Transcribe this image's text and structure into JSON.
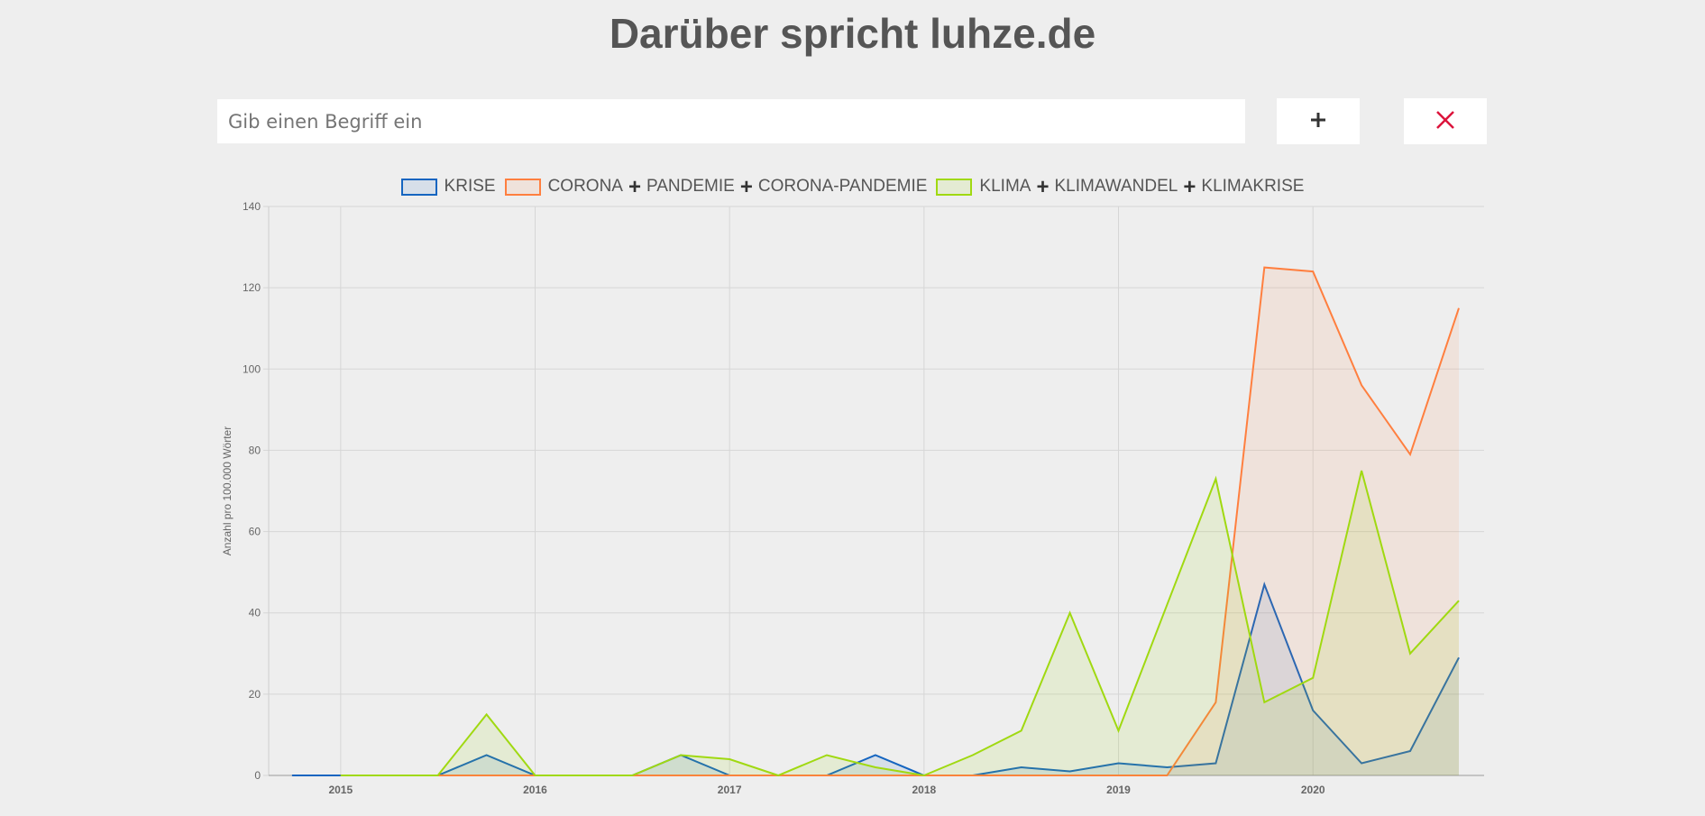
{
  "header": {
    "title": "Darüber spricht luhze.de"
  },
  "search": {
    "placeholder": "Gib einen Begriff ein",
    "value": ""
  },
  "toolbar": {
    "add_icon": "plus-icon",
    "clear_icon": "close-icon"
  },
  "colors": {
    "add": "#333333",
    "clear": "#dc143c"
  },
  "chart_data": {
    "type": "line",
    "ylabel": "Anzahl pro 100.000 Wörter",
    "xlabel": "",
    "ylim": [
      0,
      140
    ],
    "yticks": [
      0,
      20,
      40,
      60,
      80,
      100,
      120,
      140
    ],
    "xlim": [
      2014.63,
      2020.88
    ],
    "xticks": [
      "2015",
      "2016",
      "2017",
      "2018",
      "2019",
      "2020"
    ],
    "grid": true,
    "legend_position": "top",
    "x": [
      2014.75,
      2015.0,
      2015.25,
      2015.5,
      2015.75,
      2016.0,
      2016.25,
      2016.5,
      2016.75,
      2017.0,
      2017.25,
      2017.5,
      2017.75,
      2018.0,
      2018.25,
      2018.5,
      2018.75,
      2019.0,
      2019.25,
      2019.5,
      2019.75,
      2020.0,
      2020.25,
      2020.5,
      2020.75
    ],
    "series": [
      {
        "name": "KRISE",
        "legend_parts": [
          "KRISE"
        ],
        "color": "#1565c0",
        "fill": "rgba(21,101,192,0.10)",
        "values": [
          0,
          0,
          0,
          0,
          5,
          0,
          0,
          0,
          5,
          0,
          0,
          0,
          5,
          0,
          0,
          2,
          1,
          3,
          2,
          3,
          47,
          16,
          3,
          6,
          29
        ]
      },
      {
        "name": "CORONA + PANDEMIE + CORONA-PANDEMIE",
        "legend_parts": [
          "CORONA",
          "PANDEMIE",
          "CORONA-PANDEMIE"
        ],
        "color": "#ff7f3f",
        "fill": "rgba(255,127,63,0.10)",
        "values": [
          null,
          0,
          0,
          0,
          0,
          0,
          0,
          0,
          0,
          0,
          0,
          0,
          0,
          0,
          0,
          0,
          0,
          0,
          0,
          18,
          125,
          124,
          96,
          79,
          115
        ]
      },
      {
        "name": "KLIMA + KLIMAWANDEL + KLIMAKRISE",
        "legend_parts": [
          "KLIMA",
          "KLIMAWANDEL",
          "KLIMAKRISE"
        ],
        "color": "#a0d911",
        "fill": "rgba(160,217,17,0.12)",
        "values": [
          null,
          0,
          0,
          0,
          15,
          0,
          0,
          0,
          5,
          4,
          0,
          5,
          2,
          0,
          5,
          11,
          40,
          11,
          42,
          73,
          18,
          24,
          75,
          30,
          43
        ]
      }
    ]
  }
}
